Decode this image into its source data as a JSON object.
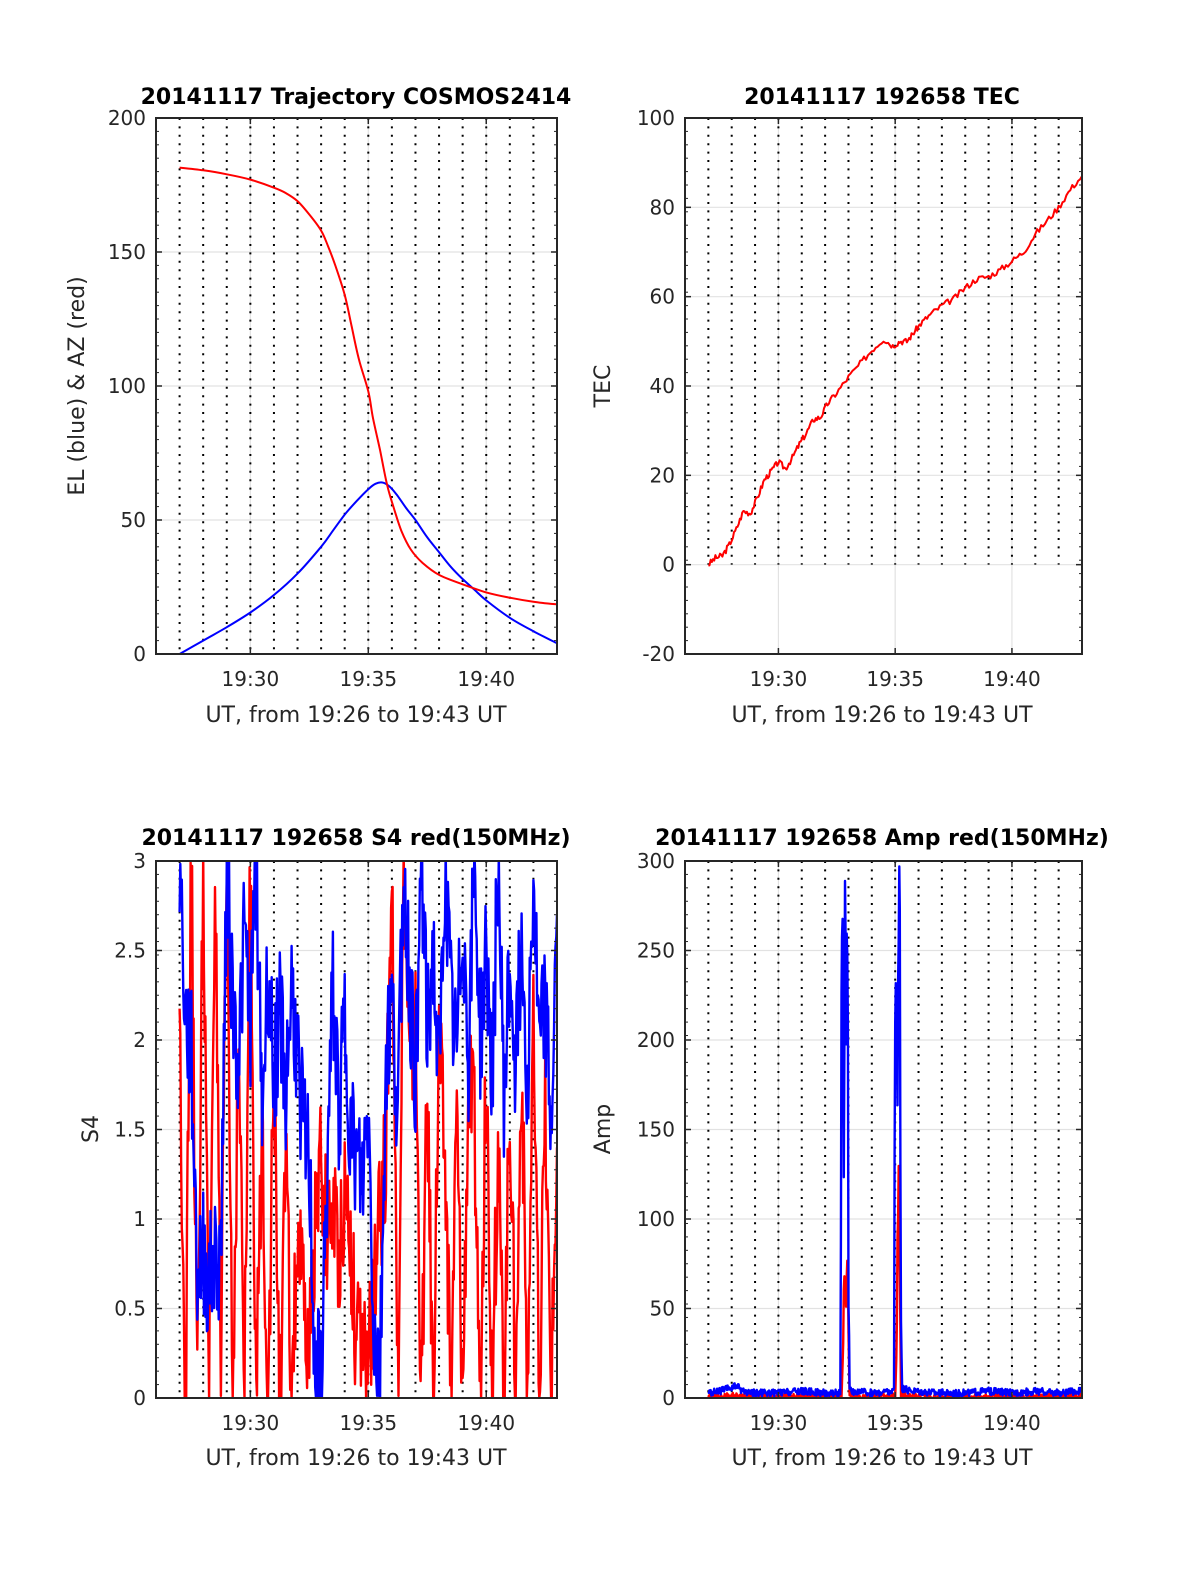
{
  "chart_data": [
    {
      "type": "line",
      "title": "20141117 Trajectory COSMOS2414",
      "xlabel": "UT, from 19:26 to 19:43 UT",
      "ylabel": "EL (blue) & AZ (red)",
      "x_unit": "minutes after 19:26 UT",
      "xlim": [
        0,
        17
      ],
      "ylim": [
        0,
        200
      ],
      "xticks": [
        4,
        9,
        14
      ],
      "xtick_labels": [
        "19:30",
        "19:35",
        "19:40"
      ],
      "yticks": [
        0,
        50,
        100,
        150,
        200
      ],
      "ytick_labels": [
        "0",
        "50",
        "100",
        "150",
        "200"
      ],
      "grid": true,
      "minor_dotted_every_minute": true,
      "series": [
        {
          "name": "EL",
          "color": "#0000ff",
          "x": [
            1,
            2,
            3,
            4,
            5,
            6,
            7,
            7.5,
            8,
            8.5,
            9,
            9.3,
            9.6,
            9.9,
            10.2,
            10.6,
            11,
            11.5,
            12,
            12.5,
            13,
            13.5,
            14,
            15,
            16,
            17
          ],
          "y": [
            0,
            5,
            10,
            15.5,
            22,
            30,
            40,
            46,
            52,
            57,
            61.5,
            63.5,
            64,
            62.5,
            59.5,
            54.5,
            50,
            43.5,
            38,
            32.5,
            28,
            24,
            20,
            13.5,
            8.5,
            4
          ]
        },
        {
          "name": "AZ",
          "color": "#ff0000",
          "x": [
            1,
            2,
            3,
            4,
            5,
            5.5,
            6,
            6.5,
            7,
            7.3,
            7.6,
            8,
            8.3,
            8.6,
            9,
            9.2,
            9.5,
            9.8,
            10.1,
            10.4,
            10.8,
            11.3,
            12,
            13,
            14,
            15,
            16,
            17
          ],
          "y": [
            181.5,
            180.5,
            179,
            177,
            174,
            172,
            169,
            164,
            158,
            152,
            145,
            134,
            122,
            110,
            98,
            88,
            76,
            63,
            54,
            46,
            39,
            34,
            29.5,
            26,
            23,
            21,
            19.5,
            18.5
          ]
        }
      ]
    },
    {
      "type": "line",
      "title": "20141117 192658 TEC",
      "xlabel": "UT, from 19:26 to 19:43 UT",
      "ylabel": "TEC",
      "x_unit": "minutes after 19:26 UT",
      "xlim": [
        0,
        17
      ],
      "ylim": [
        -20,
        100
      ],
      "xticks": [
        4,
        9,
        14
      ],
      "xtick_labels": [
        "19:30",
        "19:35",
        "19:40"
      ],
      "yticks": [
        -20,
        0,
        20,
        40,
        60,
        80,
        100
      ],
      "ytick_labels": [
        "-20",
        "0",
        "20",
        "40",
        "60",
        "80",
        "100"
      ],
      "grid": true,
      "minor_dotted_every_minute": true,
      "series": [
        {
          "name": "TEC",
          "color": "#ff0000",
          "x": [
            1,
            1.3,
            1.6,
            1.9,
            2.2,
            2.5,
            2.8,
            3.1,
            3.4,
            3.7,
            4.0,
            4.3,
            4.6,
            4.9,
            5.2,
            5.5,
            5.8,
            6.1,
            6.5,
            7.0,
            7.5,
            8.0,
            8.5,
            8.9,
            9.2,
            9.5,
            9.8,
            10.1,
            10.5,
            11.0,
            11.5,
            12.0,
            12.5,
            13.0,
            13.5,
            14.0,
            14.5,
            15.0,
            15.5,
            16.0,
            16.5,
            17.0
          ],
          "y": [
            0,
            1.5,
            2,
            4.5,
            8,
            12,
            11.5,
            15,
            19,
            21,
            23,
            21.5,
            24,
            27,
            29.5,
            32.5,
            33,
            36,
            38.5,
            42,
            45,
            48,
            50.5,
            49,
            50,
            50,
            52,
            54,
            56,
            58,
            59.5,
            62,
            64,
            64.5,
            66,
            68,
            70,
            74,
            77,
            80,
            84,
            87
          ]
        }
      ]
    },
    {
      "type": "line",
      "title": "20141117 192658 S4 red(150MHz)",
      "xlabel": "UT, from 19:26 to 19:43 UT",
      "ylabel": "S4",
      "x_unit": "minutes after 19:26 UT",
      "xlim": [
        0,
        17
      ],
      "ylim": [
        0,
        3
      ],
      "xticks": [
        4,
        9,
        14
      ],
      "xtick_labels": [
        "19:30",
        "19:35",
        "19:40"
      ],
      "yticks": [
        0,
        0.5,
        1,
        1.5,
        2,
        2.5,
        3
      ],
      "ytick_labels": [
        "0",
        "0.5",
        "1",
        "1.5",
        "2",
        "2.5",
        "3"
      ],
      "grid": true,
      "minor_dotted_every_minute": true,
      "series": [
        {
          "name": "S4 red",
          "color": "#ff0000",
          "x": [
            1.0,
            1.25,
            1.5,
            1.75,
            2.0,
            2.25,
            2.5,
            2.75,
            3.0,
            3.25,
            3.5,
            3.75,
            4.0,
            4.25,
            4.5,
            4.75,
            5.0,
            5.25,
            5.5,
            5.75,
            6.0,
            6.25,
            6.5,
            6.75,
            7.0,
            7.25,
            7.5,
            7.75,
            8.0,
            8.25,
            8.5,
            8.75,
            9.0,
            9.25,
            9.5,
            9.75,
            10.0,
            10.25,
            10.5,
            10.75,
            11.0,
            11.25,
            11.5,
            11.75,
            12.0,
            12.25,
            12.5,
            12.75,
            13.0,
            13.25,
            13.5,
            13.75,
            14.0,
            14.25,
            14.5,
            14.75,
            15.0,
            15.25,
            15.5,
            15.75,
            16.0,
            16.25,
            16.5,
            16.75,
            17.0
          ],
          "y": [
            2.1,
            0,
            3,
            0,
            3,
            0,
            3,
            0,
            3,
            0,
            2.0,
            0,
            3,
            0,
            1.5,
            0,
            1.8,
            0,
            1.3,
            0,
            0.9,
            0.5,
            0.2,
            1.0,
            1.3,
            0.9,
            1.1,
            0.8,
            1.2,
            0.9,
            0.3,
            0.25,
            0.2,
            0.6,
            1.0,
            1.4,
            3,
            0,
            3,
            1.8,
            2.1,
            0,
            1.7,
            0,
            2.0,
            1.3,
            0,
            1.6,
            0,
            1.8,
            1.5,
            0,
            1.9,
            0,
            1.4,
            0,
            1.7,
            0,
            1.9,
            0,
            2.0,
            0,
            1.6,
            0,
            1.4
          ]
        },
        {
          "name": "S4 blue",
          "color": "#0000ff",
          "x": [
            1.0,
            1.25,
            1.5,
            1.75,
            2.0,
            2.25,
            2.5,
            2.75,
            3.0,
            3.25,
            3.5,
            3.75,
            4.0,
            4.25,
            4.5,
            4.75,
            5.0,
            5.25,
            5.5,
            5.75,
            6.0,
            6.25,
            6.5,
            6.75,
            7.0,
            7.25,
            7.5,
            7.75,
            8.0,
            8.25,
            8.5,
            8.75,
            9.0,
            9.25,
            9.5,
            9.75,
            10.0,
            10.25,
            10.5,
            10.75,
            11.0,
            11.25,
            11.5,
            11.75,
            12.0,
            12.25,
            12.5,
            12.75,
            13.0,
            13.25,
            13.5,
            13.75,
            14.0,
            14.25,
            14.5,
            14.75,
            15.0,
            15.25,
            15.5,
            15.75,
            16.0,
            16.25,
            16.5,
            16.75,
            17.0
          ],
          "y": [
            3,
            2.1,
            1.9,
            0.7,
            0.8,
            0.65,
            0.75,
            0.8,
            3,
            2.2,
            1.9,
            2.6,
            2.1,
            3,
            1.6,
            2.4,
            1.8,
            2.2,
            1.7,
            2.3,
            1.9,
            1.5,
            1.3,
            0.15,
            0.1,
            1.2,
            2.3,
            1.6,
            2.1,
            1.5,
            1.3,
            1.2,
            1.6,
            0.35,
            0.15,
            1.9,
            2.2,
            1.6,
            3,
            2.3,
            1.8,
            3,
            2.0,
            2.5,
            1.7,
            3,
            2.2,
            1.9,
            2.7,
            1.9,
            3,
            2.0,
            2.5,
            1.8,
            3,
            1.7,
            2.4,
            1.9,
            2.6,
            1.8,
            2.9,
            1.9,
            2.2,
            1.5,
            2.7
          ]
        }
      ]
    },
    {
      "type": "line",
      "title": "20141117 192658 Amp red(150MHz)",
      "xlabel": "UT, from 19:26 to 19:43 UT",
      "ylabel": "Amp",
      "x_unit": "minutes after 19:26 UT",
      "xlim": [
        0,
        17
      ],
      "ylim": [
        0,
        300
      ],
      "xticks": [
        4,
        9,
        14
      ],
      "xtick_labels": [
        "19:30",
        "19:35",
        "19:40"
      ],
      "yticks": [
        0,
        50,
        100,
        150,
        200,
        250,
        300
      ],
      "ytick_labels": [
        "0",
        "50",
        "100",
        "150",
        "200",
        "250",
        "300"
      ],
      "grid": true,
      "minor_dotted_every_minute": true,
      "series": [
        {
          "name": "Amp red",
          "color": "#ff0000",
          "x": [
            1,
            6.7,
            6.75,
            6.8,
            6.85,
            6.9,
            6.95,
            7.0,
            7.05,
            7.1,
            9.0,
            9.05,
            9.1,
            9.15,
            9.2,
            9.25,
            17
          ],
          "y": [
            0,
            0,
            20,
            50,
            60,
            40,
            85,
            30,
            0,
            0,
            0,
            20,
            80,
            105,
            60,
            0,
            0
          ]
        },
        {
          "name": "Amp blue",
          "color": "#0000ff",
          "x": [
            1,
            1.5,
            2.0,
            2.2,
            2.5,
            3.0,
            4.0,
            5.0,
            6.0,
            6.65,
            6.7,
            6.75,
            6.8,
            6.85,
            6.9,
            6.95,
            7.0,
            7.05,
            7.1,
            8.0,
            8.95,
            9.0,
            9.05,
            9.1,
            9.15,
            9.2,
            9.25,
            9.3,
            10.0,
            11.0,
            12.0,
            13.0,
            14.0,
            15.0,
            16.0,
            17.0
          ],
          "y": [
            2,
            3,
            5,
            6,
            3,
            2,
            2,
            3,
            2,
            2,
            200,
            220,
            100,
            255,
            160,
            260,
            60,
            5,
            3,
            2,
            3,
            210,
            238,
            150,
            230,
            265,
            40,
            4,
            3,
            2,
            2,
            3,
            2,
            3,
            2,
            3
          ]
        }
      ]
    }
  ]
}
